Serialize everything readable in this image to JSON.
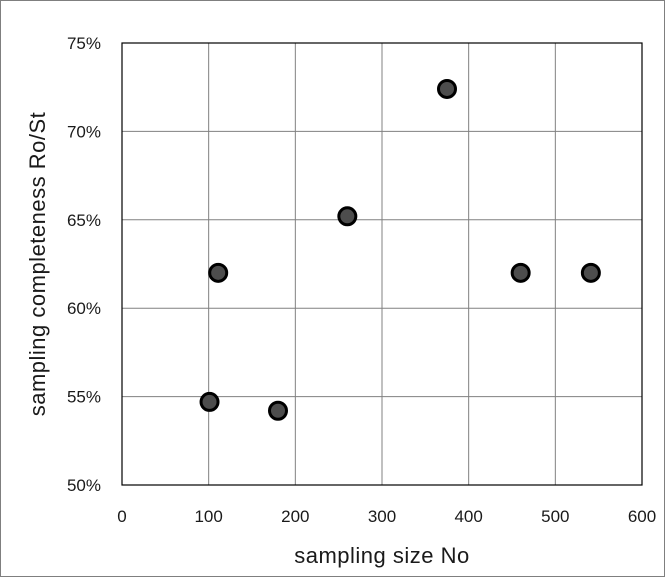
{
  "chart_data": {
    "type": "scatter",
    "title": "",
    "xlabel": "sampling  size  No",
    "ylabel": "sampling  completeness  Ro/St",
    "xlim": [
      0,
      600
    ],
    "ylim": [
      0.5,
      0.75
    ],
    "grid": true,
    "x_ticks": [
      0,
      100,
      200,
      300,
      400,
      500,
      600
    ],
    "x_tick_labels": [
      "0",
      "100",
      "200",
      "300",
      "400",
      "500",
      "600"
    ],
    "y_ticks": [
      0.5,
      0.55,
      0.6,
      0.65,
      0.7,
      0.75
    ],
    "y_tick_labels": [
      "50%",
      "55%",
      "60%",
      "65%",
      "70%",
      "75%"
    ],
    "marker_fill": "#4d4d4d",
    "marker_edge": "#000000",
    "series": [
      {
        "points": [
          {
            "x": 101,
            "y": 0.547
          },
          {
            "x": 111,
            "y": 0.62
          },
          {
            "x": 180,
            "y": 0.542
          },
          {
            "x": 260,
            "y": 0.652
          },
          {
            "x": 375,
            "y": 0.724
          },
          {
            "x": 460,
            "y": 0.62
          },
          {
            "x": 541,
            "y": 0.62
          }
        ]
      }
    ]
  }
}
